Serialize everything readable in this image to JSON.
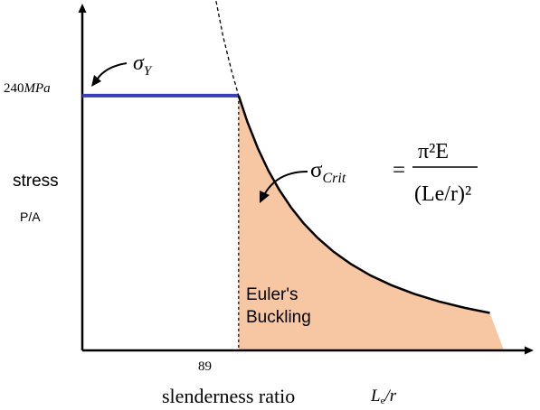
{
  "chart_data": {
    "type": "line",
    "title": "",
    "xlabel": "slenderness ratio",
    "xlabel_symbol": {
      "L": "L",
      "sub": "e",
      "rest": "/r"
    },
    "ylabel": "stress",
    "ylabel_sub": "P/A",
    "x_tick": "89",
    "y_tick": "240MPa",
    "y_tick_parts": {
      "num": "240",
      "unit": "MPa"
    },
    "xlim": [
      0,
      240
    ],
    "ylim": [
      0,
      330
    ],
    "grid": false,
    "series": [
      {
        "name": "σY",
        "label_parts": {
          "sym": "σ",
          "sub": "Y"
        },
        "color": "#3b3fb8",
        "x": [
          0,
          89
        ],
        "y": [
          240,
          240
        ]
      },
      {
        "name": "σCrit",
        "label_parts": {
          "sym": "σ",
          "sub": "Crit"
        },
        "formula": {
          "numerator": "π²E",
          "denominator": "(Le/r)²"
        },
        "color": "#000000",
        "solid_x": [
          89,
          94,
          100,
          106,
          112,
          119,
          126,
          134,
          143,
          153,
          164,
          176,
          189,
          203,
          218,
          232
        ],
        "dashed_x": [
          68,
          74,
          80,
          85,
          89
        ]
      }
    ],
    "region": {
      "label_line1": "Euler's",
      "label_line2": "Buckling",
      "fill": "#f7c6a3"
    },
    "line_color": "#000000"
  }
}
